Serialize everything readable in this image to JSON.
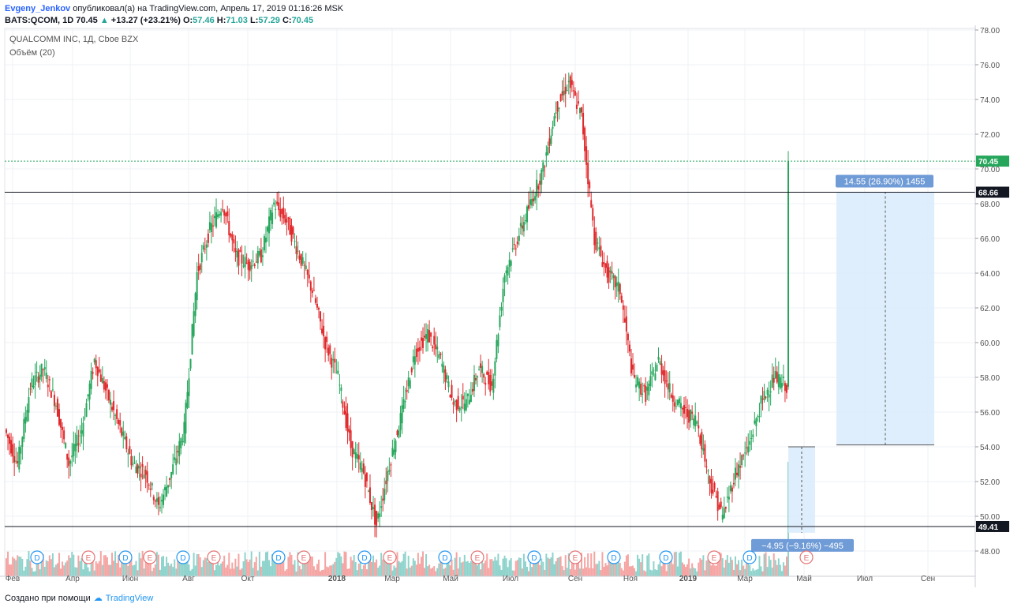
{
  "header": {
    "author": "Evgeny_Jenkov",
    "published": "опубликовал(а) на TradingView.com, Апрель 17, 2019 01:16:26 MSK",
    "symbol": "BATS:QCOM, 1D",
    "last": "70.45",
    "change": "+13.27 (+23.21%)",
    "o_label": "O:",
    "o": "57.46",
    "h_label": "H:",
    "h": "71.03",
    "l_label": "L:",
    "l": "57.29",
    "c_label": "C:",
    "c": "70.45"
  },
  "legend": {
    "title": "QUALCOMM INC, 1Д, Cboe BZX",
    "volume": "Объём (20)"
  },
  "footer": {
    "created": "Создано при помощи",
    "brand": "TradingView"
  },
  "colors": {
    "up": "#26a65b",
    "down": "#e0292b",
    "vol_up": "#8fd3cc",
    "vol_down": "#f5a5a3",
    "measure_fill": "#d9ebfc",
    "measure_label": "#6f9bd6",
    "event_line": "#131722",
    "last_price": "#26a65b"
  },
  "chart_data": {
    "type": "candlestick",
    "symbol": "QCOM",
    "y_axis_ticks": [
      "78.00",
      "76.00",
      "74.00",
      "72.00",
      "70.00",
      "68.00",
      "66.00",
      "64.00",
      "62.00",
      "60.00",
      "58.00",
      "56.00",
      "54.00",
      "52.00",
      "50.00",
      "48.00"
    ],
    "x_axis_ticks": [
      "Фев",
      "Апр",
      "Июн",
      "Авг",
      "Окт",
      "2018",
      "Мар",
      "Май",
      "Июл",
      "Сен",
      "Ноя",
      "2019",
      "Мар",
      "Май",
      "Июл",
      "Сен"
    ],
    "anchor_prices": [
      55.0,
      53.0,
      57.5,
      58.5,
      56.5,
      53.0,
      55.0,
      59.0,
      57.0,
      55.0,
      53.0,
      52.5,
      50.5,
      52.5,
      55.0,
      64.0,
      66.5,
      68.0,
      65.0,
      64.5,
      65.0,
      68.0,
      67.0,
      65.0,
      63.0,
      60.0,
      58.0,
      54.0,
      52.5,
      49.5,
      53.0,
      56.0,
      59.5,
      60.5,
      59.0,
      56.5,
      56.5,
      58.5,
      57.5,
      64.0,
      66.0,
      68.0,
      70.0,
      73.5,
      75.0,
      73.0,
      66.0,
      64.0,
      63.0,
      58.0,
      57.0,
      59.0,
      57.0,
      56.0,
      55.5,
      52.0,
      50.0,
      52.5,
      54.0,
      56.5,
      58.0,
      57.5,
      70.45
    ],
    "last_price": 70.45,
    "horizontal_lines": [
      {
        "price": 68.66,
        "label": "68.66"
      },
      {
        "price": 49.41,
        "label": "49.41"
      }
    ],
    "measures": [
      {
        "label": "14.55 (26.90%) 1455",
        "from": 54.11,
        "to": 68.66
      },
      {
        "label": "−4.95 (−9.16%) −495",
        "from": 54.0,
        "to": 49.05
      }
    ],
    "events": [
      "D",
      "E",
      "D",
      "E",
      "D",
      "E",
      "D",
      "E",
      "D",
      "E",
      "D",
      "E",
      "D",
      "E",
      "D",
      "D",
      "E",
      "D",
      "E"
    ],
    "volume_study": "Объём (20)"
  }
}
